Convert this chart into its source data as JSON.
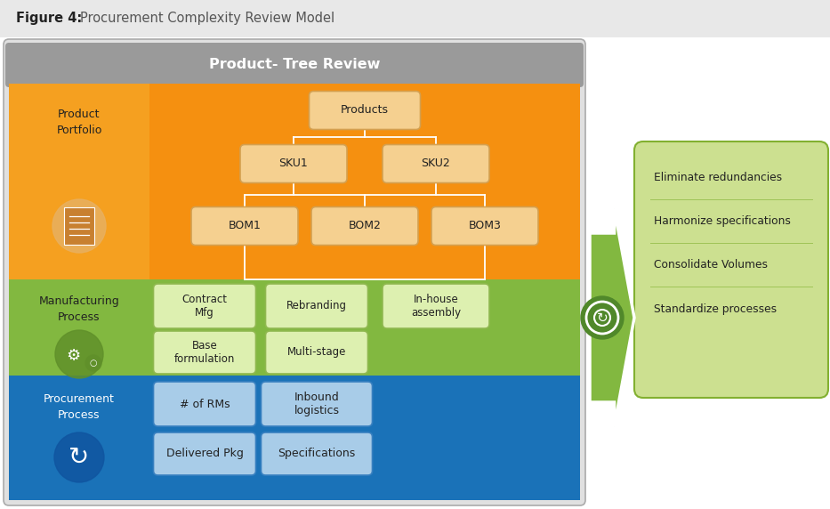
{
  "figure_title_bold": "Figure 4:",
  "figure_title_normal": "Procurement Complexity Review Model",
  "main_header": "Product- Tree Review",
  "title_bar_bg": "#e8e8e8",
  "main_border_bg": "#e0e0e0",
  "header_bg": "#9a9a9a",
  "orange_light": "#f5a020",
  "orange_dark": "#f59010",
  "green_bg": "#82b840",
  "blue_bg": "#1a72b8",
  "box_fill_orange": "#f5d090",
  "box_edge_orange": "#d4a050",
  "box_fill_green": "#ddf0b0",
  "box_edge_green": "#90b850",
  "box_fill_blue": "#a8cce8",
  "box_edge_blue": "#3880c0",
  "right_panel_bg": "#cce090",
  "right_panel_edge": "#82b030",
  "arrow_fill": "#82b840",
  "arrow_edge": "#82b030",
  "white": "#ffffff",
  "dark_text": "#222222",
  "icon_alpha_orange": "#e09820",
  "icon_alpha_green": "#70a030",
  "icon_alpha_blue": "#1862a8",
  "line_color": "#ffffff"
}
